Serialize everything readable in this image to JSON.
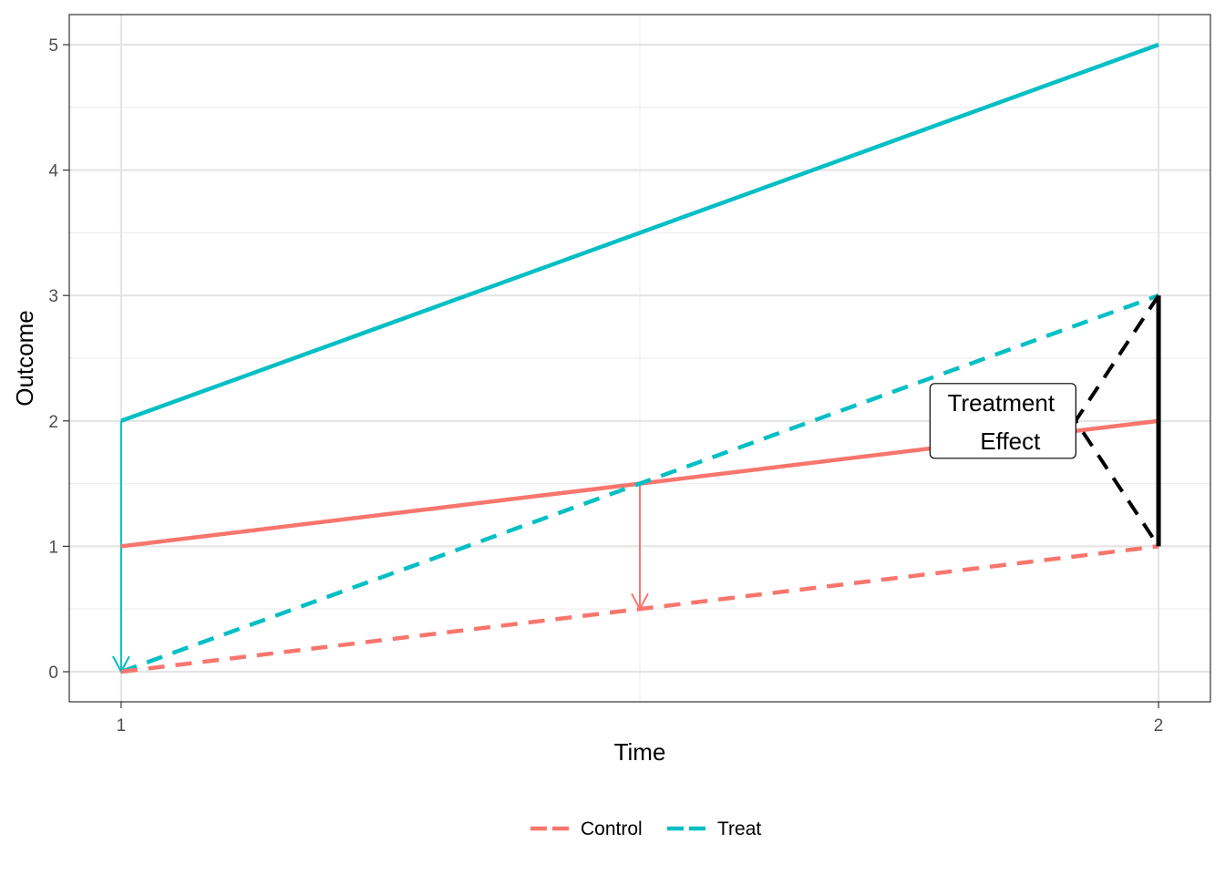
{
  "chart_data": {
    "type": "line",
    "title": "",
    "xlabel": "Time",
    "ylabel": "Outcome",
    "xlim": [
      0.95,
      2.05
    ],
    "ylim": [
      -0.24,
      5.24
    ],
    "x_ticks": [
      1,
      2
    ],
    "y_ticks": [
      0,
      1,
      2,
      3,
      4,
      5
    ],
    "grid": true,
    "legend_position": "bottom",
    "colors": {
      "Control": "#F8766D",
      "Treat": "#00BFC4",
      "annotation": "#000000"
    },
    "series": [
      {
        "name": "Treat",
        "style": "solid",
        "x": [
          1,
          2
        ],
        "y": [
          2,
          5
        ]
      },
      {
        "name": "Control",
        "style": "solid",
        "x": [
          1,
          2
        ],
        "y": [
          1,
          2
        ]
      },
      {
        "name": "Treat",
        "style": "dashed",
        "x": [
          1,
          2
        ],
        "y": [
          0,
          3
        ]
      },
      {
        "name": "Control",
        "style": "dashed",
        "x": [
          1,
          2
        ],
        "y": [
          0,
          1
        ]
      }
    ],
    "arrows": [
      {
        "series": "Treat",
        "from": [
          1,
          2
        ],
        "to": [
          1,
          0
        ]
      },
      {
        "series": "Control",
        "from": [
          1.5,
          1.5
        ],
        "to": [
          1.5,
          0.5
        ]
      }
    ],
    "effect_bar": {
      "x": 2,
      "y": [
        1,
        3
      ]
    },
    "effect_bracket": {
      "points": [
        [
          2,
          3
        ],
        [
          1.92,
          2
        ],
        [
          2,
          1
        ]
      ]
    },
    "annotation": {
      "lines": [
        "Treatment",
        "Effect"
      ],
      "x": 1.85,
      "y": 2
    },
    "legend": [
      {
        "label": "Control",
        "key": "Control"
      },
      {
        "label": "Treat",
        "key": "Treat"
      }
    ]
  }
}
